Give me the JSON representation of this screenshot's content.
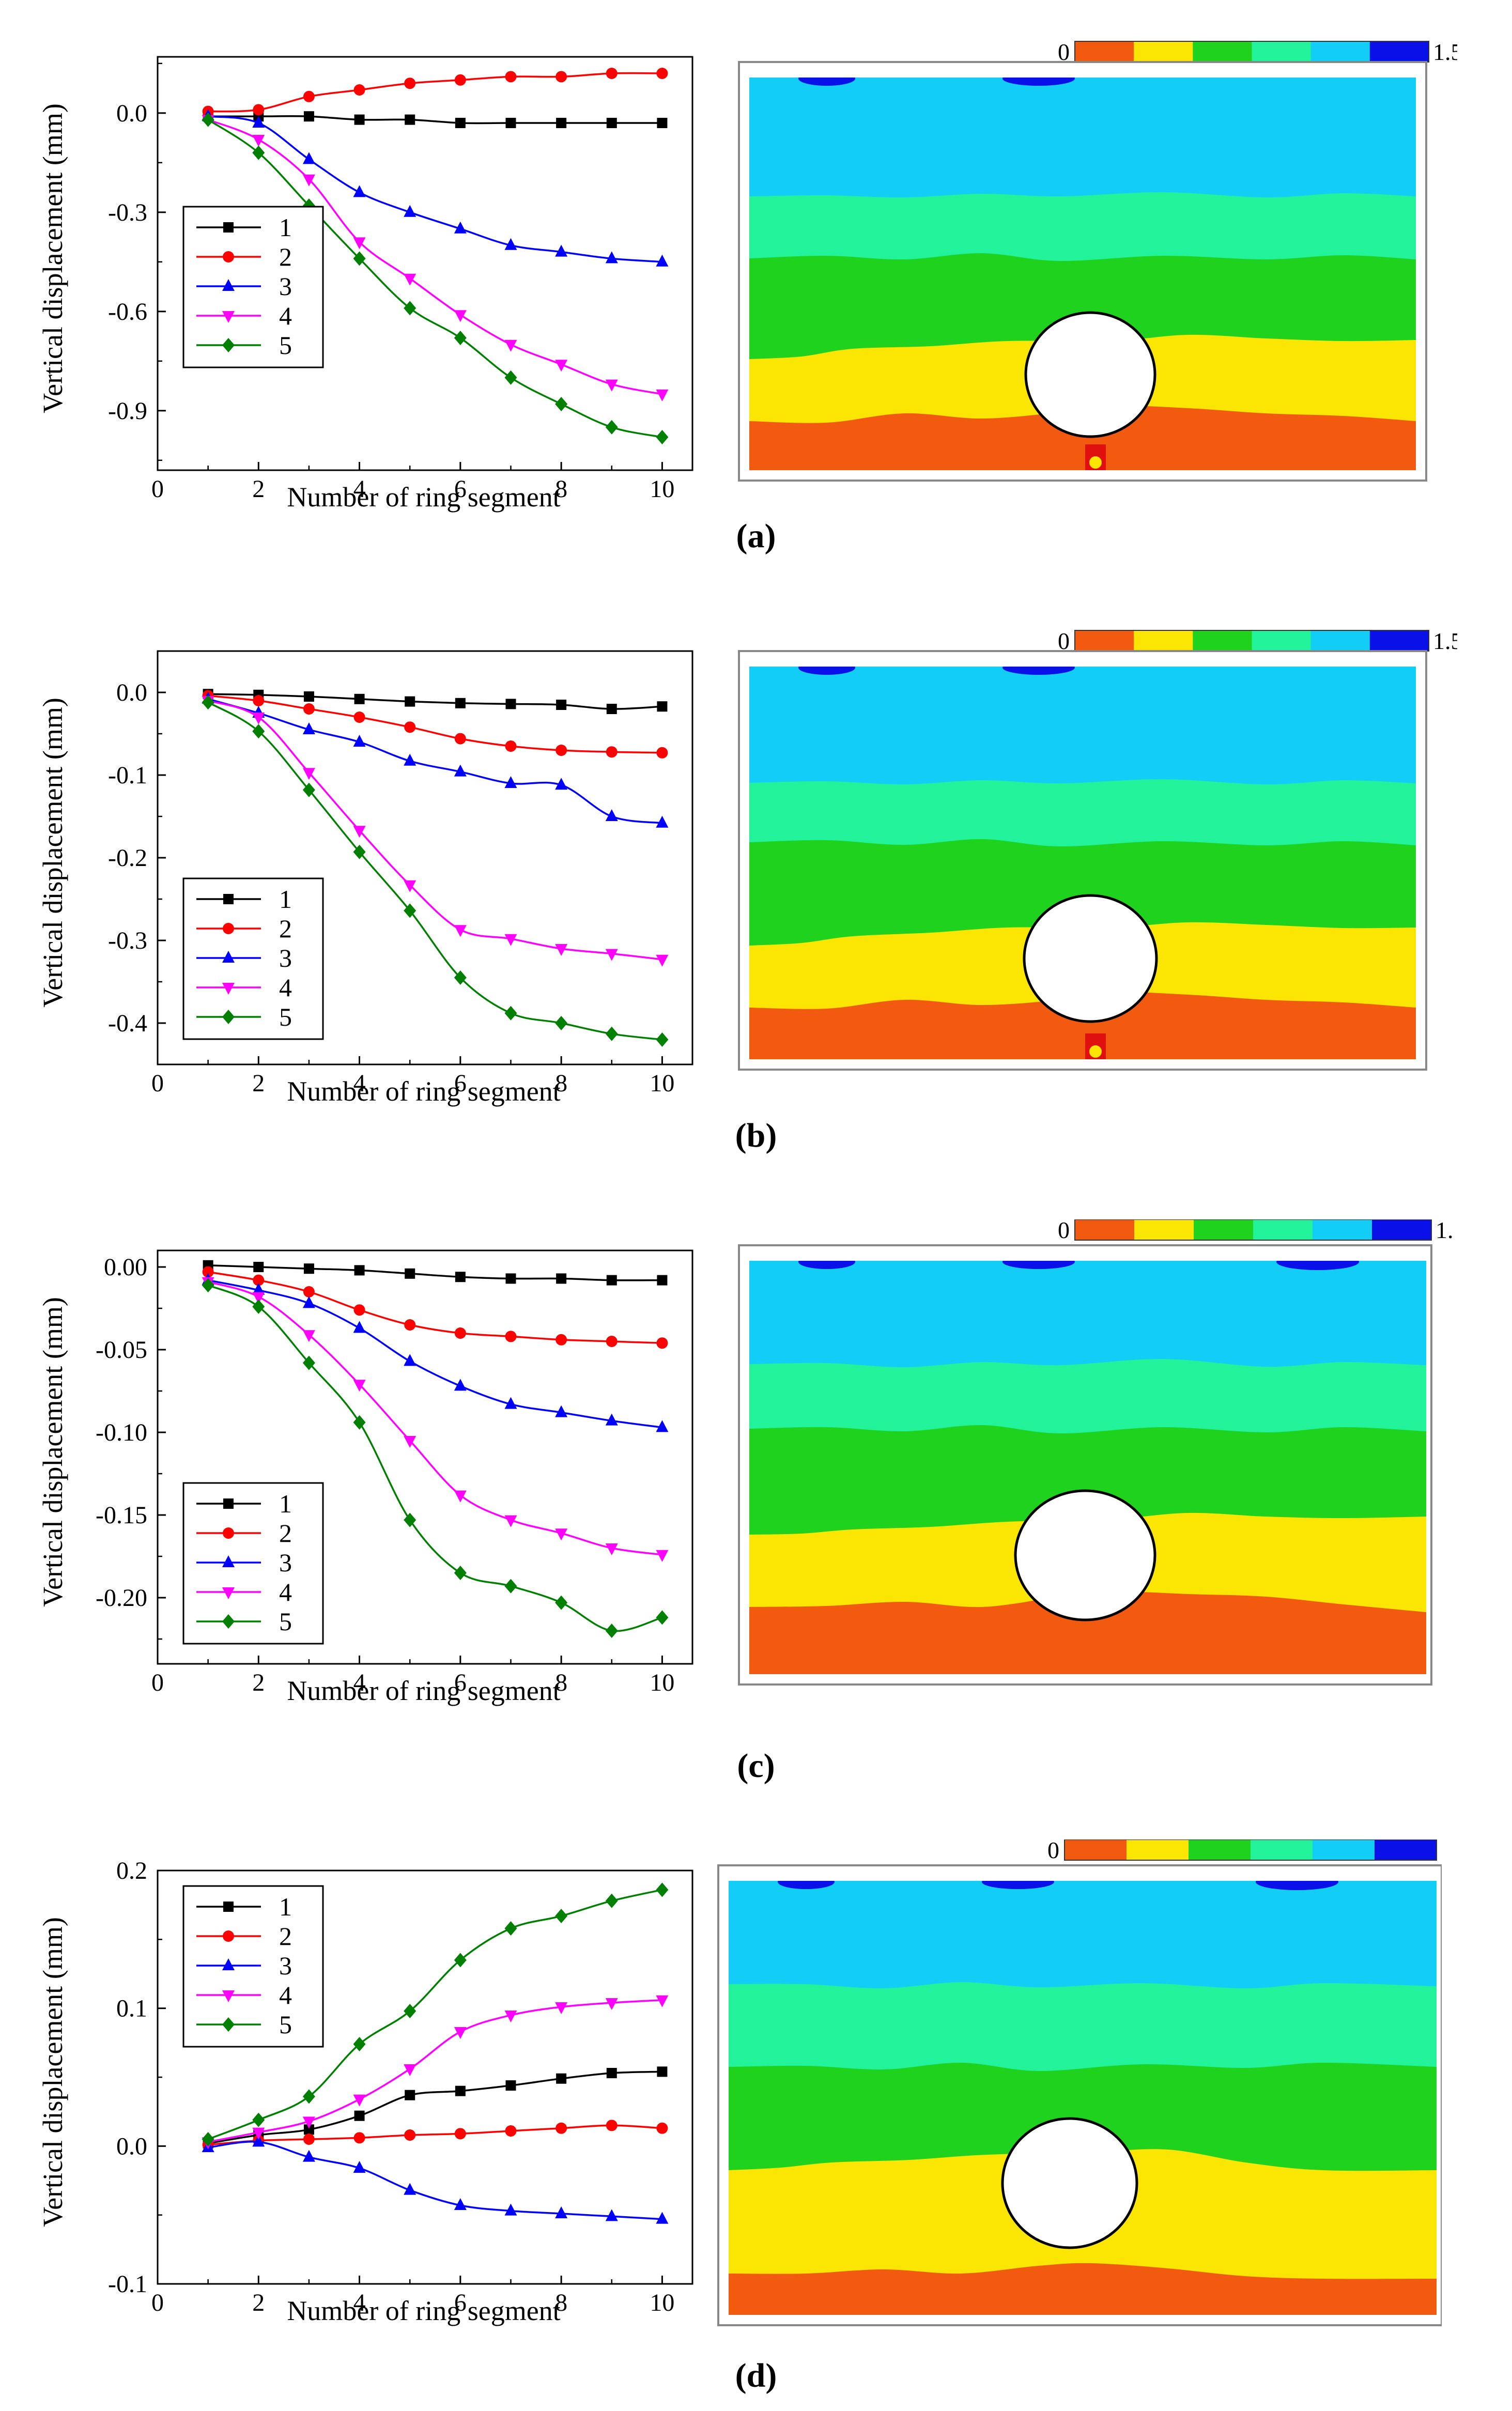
{
  "figure": {
    "panels": [
      {
        "label": "(a)",
        "letter": "a"
      },
      {
        "label": "(b)",
        "letter": "b"
      },
      {
        "label": "(c)",
        "letter": "c"
      },
      {
        "label": "(d)",
        "letter": "d"
      }
    ],
    "colorbar": {
      "min_label": "0",
      "max_label": "1.5",
      "colors": [
        "#f25a0f",
        "#fbe503",
        "#1ed21e",
        "#22f29a",
        "#12cdf5",
        "#0a10e8"
      ]
    },
    "contour_colors": {
      "orange": "#f25a0f",
      "yellow": "#fbe503",
      "green": "#1ed21e",
      "spring": "#22f29a",
      "cyan": "#12cdf5",
      "blue": "#0a10e8",
      "red": "#e01010"
    }
  },
  "chart_data": [
    {
      "type": "line",
      "panel": "a",
      "xlabel": "Number of ring segment",
      "ylabel": "Vertical displacement (mm)",
      "xlim": [
        0,
        10.6
      ],
      "ylim": [
        -1.08,
        0.17
      ],
      "xticks": [
        0,
        2,
        4,
        6,
        8,
        10
      ],
      "yticks": [
        0.0,
        -0.3,
        -0.6,
        -0.9
      ],
      "ytick_labels": [
        "0.0",
        "-0.3",
        "-0.6",
        "-0.9"
      ],
      "x": [
        1,
        2,
        3,
        4,
        5,
        6,
        7,
        8,
        9,
        10
      ],
      "series": [
        {
          "name": "1",
          "color": "#000000",
          "marker": "square",
          "values": [
            -0.01,
            -0.01,
            -0.01,
            -0.02,
            -0.02,
            -0.03,
            -0.03,
            -0.03,
            -0.03,
            -0.03
          ]
        },
        {
          "name": "2",
          "color": "#ff0000",
          "marker": "circle",
          "values": [
            0.005,
            0.01,
            0.05,
            0.07,
            0.09,
            0.1,
            0.11,
            0.11,
            0.12,
            0.12
          ]
        },
        {
          "name": "3",
          "color": "#0000ff",
          "marker": "triangle-up",
          "values": [
            -0.01,
            -0.03,
            -0.14,
            -0.24,
            -0.3,
            -0.35,
            -0.4,
            -0.42,
            -0.44,
            -0.45
          ]
        },
        {
          "name": "4",
          "color": "#ff00ff",
          "marker": "triangle-down",
          "values": [
            -0.02,
            -0.08,
            -0.2,
            -0.39,
            -0.5,
            -0.61,
            -0.7,
            -0.76,
            -0.82,
            -0.85
          ]
        },
        {
          "name": "5",
          "color": "#008000",
          "marker": "diamond",
          "values": [
            -0.02,
            -0.12,
            -0.28,
            -0.44,
            -0.59,
            -0.68,
            -0.8,
            -0.88,
            -0.95,
            -0.98
          ]
        }
      ],
      "legend": "left-middle"
    },
    {
      "type": "line",
      "panel": "b",
      "xlabel": "Number of ring segment",
      "ylabel": "Vertical displacement (mm)",
      "xlim": [
        0,
        10.6
      ],
      "ylim": [
        -0.45,
        0.05
      ],
      "xticks": [
        0,
        2,
        4,
        6,
        8,
        10
      ],
      "yticks": [
        0.0,
        -0.1,
        -0.2,
        -0.3,
        -0.4
      ],
      "ytick_labels": [
        "0.0",
        "-0.1",
        "-0.2",
        "-0.3",
        "-0.4"
      ],
      "x": [
        1,
        2,
        3,
        4,
        5,
        6,
        7,
        8,
        9,
        10
      ],
      "series": [
        {
          "name": "1",
          "color": "#000000",
          "marker": "square",
          "values": [
            -0.002,
            -0.003,
            -0.005,
            -0.008,
            -0.011,
            -0.013,
            -0.014,
            -0.015,
            -0.02,
            -0.017
          ]
        },
        {
          "name": "2",
          "color": "#ff0000",
          "marker": "circle",
          "values": [
            -0.004,
            -0.01,
            -0.02,
            -0.03,
            -0.042,
            -0.056,
            -0.065,
            -0.07,
            -0.072,
            -0.073
          ]
        },
        {
          "name": "3",
          "color": "#0000ff",
          "marker": "triangle-up",
          "values": [
            -0.008,
            -0.025,
            -0.045,
            -0.06,
            -0.083,
            -0.096,
            -0.11,
            -0.112,
            -0.15,
            -0.158
          ]
        },
        {
          "name": "4",
          "color": "#ff00ff",
          "marker": "triangle-down",
          "values": [
            -0.01,
            -0.03,
            -0.097,
            -0.167,
            -0.233,
            -0.287,
            -0.298,
            -0.31,
            -0.316,
            -0.323
          ]
        },
        {
          "name": "5",
          "color": "#008000",
          "marker": "diamond",
          "values": [
            -0.012,
            -0.047,
            -0.118,
            -0.193,
            -0.264,
            -0.345,
            -0.388,
            -0.4,
            -0.413,
            -0.42
          ]
        }
      ],
      "legend": "left-bottom"
    },
    {
      "type": "line",
      "panel": "c",
      "xlabel": "Number of ring segment",
      "ylabel": "Vertical displacement (mm)",
      "xlim": [
        0,
        10.6
      ],
      "ylim": [
        -0.24,
        0.01
      ],
      "xticks": [
        0,
        2,
        4,
        6,
        8,
        10
      ],
      "yticks": [
        0.0,
        -0.05,
        -0.1,
        -0.15,
        -0.2
      ],
      "ytick_labels": [
        "0.00",
        "-0.05",
        "-0.10",
        "-0.15",
        "-0.20"
      ],
      "x": [
        1,
        2,
        3,
        4,
        5,
        6,
        7,
        8,
        9,
        10
      ],
      "series": [
        {
          "name": "1",
          "color": "#000000",
          "marker": "square",
          "values": [
            0.001,
            0.0,
            -0.001,
            -0.002,
            -0.004,
            -0.006,
            -0.007,
            -0.007,
            -0.008,
            -0.008
          ]
        },
        {
          "name": "2",
          "color": "#ff0000",
          "marker": "circle",
          "values": [
            -0.003,
            -0.008,
            -0.015,
            -0.026,
            -0.035,
            -0.04,
            -0.042,
            -0.044,
            -0.045,
            -0.046
          ]
        },
        {
          "name": "3",
          "color": "#0000ff",
          "marker": "triangle-up",
          "values": [
            -0.008,
            -0.014,
            -0.022,
            -0.037,
            -0.057,
            -0.072,
            -0.083,
            -0.088,
            -0.093,
            -0.097
          ]
        },
        {
          "name": "4",
          "color": "#ff00ff",
          "marker": "triangle-down",
          "values": [
            -0.009,
            -0.018,
            -0.041,
            -0.071,
            -0.105,
            -0.138,
            -0.153,
            -0.161,
            -0.17,
            -0.174
          ]
        },
        {
          "name": "5",
          "color": "#008000",
          "marker": "diamond",
          "values": [
            -0.011,
            -0.024,
            -0.058,
            -0.094,
            -0.153,
            -0.185,
            -0.193,
            -0.203,
            -0.22,
            -0.212
          ]
        }
      ],
      "legend": "left-bottom"
    },
    {
      "type": "line",
      "panel": "d",
      "xlabel": "Number of ring segment",
      "ylabel": "Vertical displacement (mm)",
      "xlim": [
        0,
        10.6
      ],
      "ylim": [
        -0.1,
        0.2
      ],
      "xticks": [
        0,
        2,
        4,
        6,
        8,
        10
      ],
      "yticks": [
        0.2,
        0.1,
        0.0,
        -0.1
      ],
      "ytick_labels": [
        "0.2",
        "0.1",
        "0.0",
        "-0.1"
      ],
      "x": [
        1,
        2,
        3,
        4,
        5,
        6,
        7,
        8,
        9,
        10
      ],
      "series": [
        {
          "name": "1",
          "color": "#000000",
          "marker": "square",
          "values": [
            0.002,
            0.008,
            0.012,
            0.022,
            0.037,
            0.04,
            0.044,
            0.049,
            0.053,
            0.054
          ]
        },
        {
          "name": "2",
          "color": "#ff0000",
          "marker": "circle",
          "values": [
            0.001,
            0.004,
            0.005,
            0.006,
            0.008,
            0.009,
            0.011,
            0.013,
            0.015,
            0.013
          ]
        },
        {
          "name": "3",
          "color": "#0000ff",
          "marker": "triangle-up",
          "values": [
            -0.001,
            0.003,
            -0.008,
            -0.016,
            -0.032,
            -0.043,
            -0.047,
            -0.049,
            -0.051,
            -0.053
          ]
        },
        {
          "name": "4",
          "color": "#ff00ff",
          "marker": "triangle-down",
          "values": [
            0.003,
            0.01,
            0.018,
            0.034,
            0.056,
            0.083,
            0.095,
            0.101,
            0.104,
            0.106
          ]
        },
        {
          "name": "5",
          "color": "#008000",
          "marker": "diamond",
          "values": [
            0.005,
            0.019,
            0.036,
            0.074,
            0.098,
            0.135,
            0.158,
            0.167,
            0.178,
            0.186
          ]
        }
      ],
      "legend": "left-top"
    }
  ]
}
